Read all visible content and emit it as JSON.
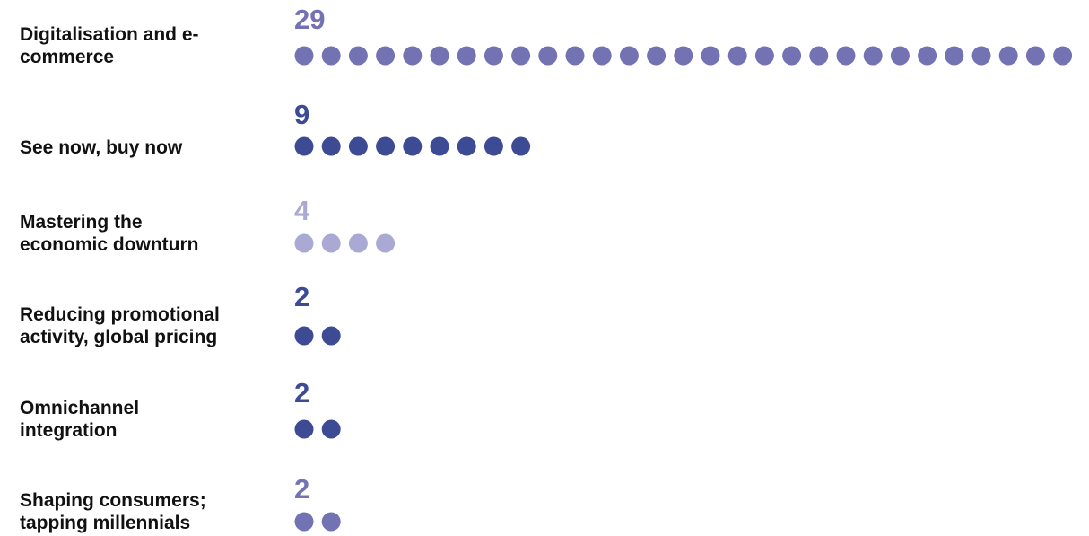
{
  "chart_data": {
    "type": "dot",
    "categories": [
      "Digitalisation and e-commerce",
      "See now, buy now",
      "Mastering the economic downturn",
      "Reducing promotional activity, global pricing",
      "Omnichannel integration",
      "Shaping consumers; tapping millennials"
    ],
    "values": [
      29,
      9,
      4,
      2,
      2,
      2
    ],
    "colors": [
      "#7373b3",
      "#3d4b95",
      "#a9a9d3",
      "#3d4b95",
      "#3d4b95",
      "#7373b3"
    ]
  }
}
